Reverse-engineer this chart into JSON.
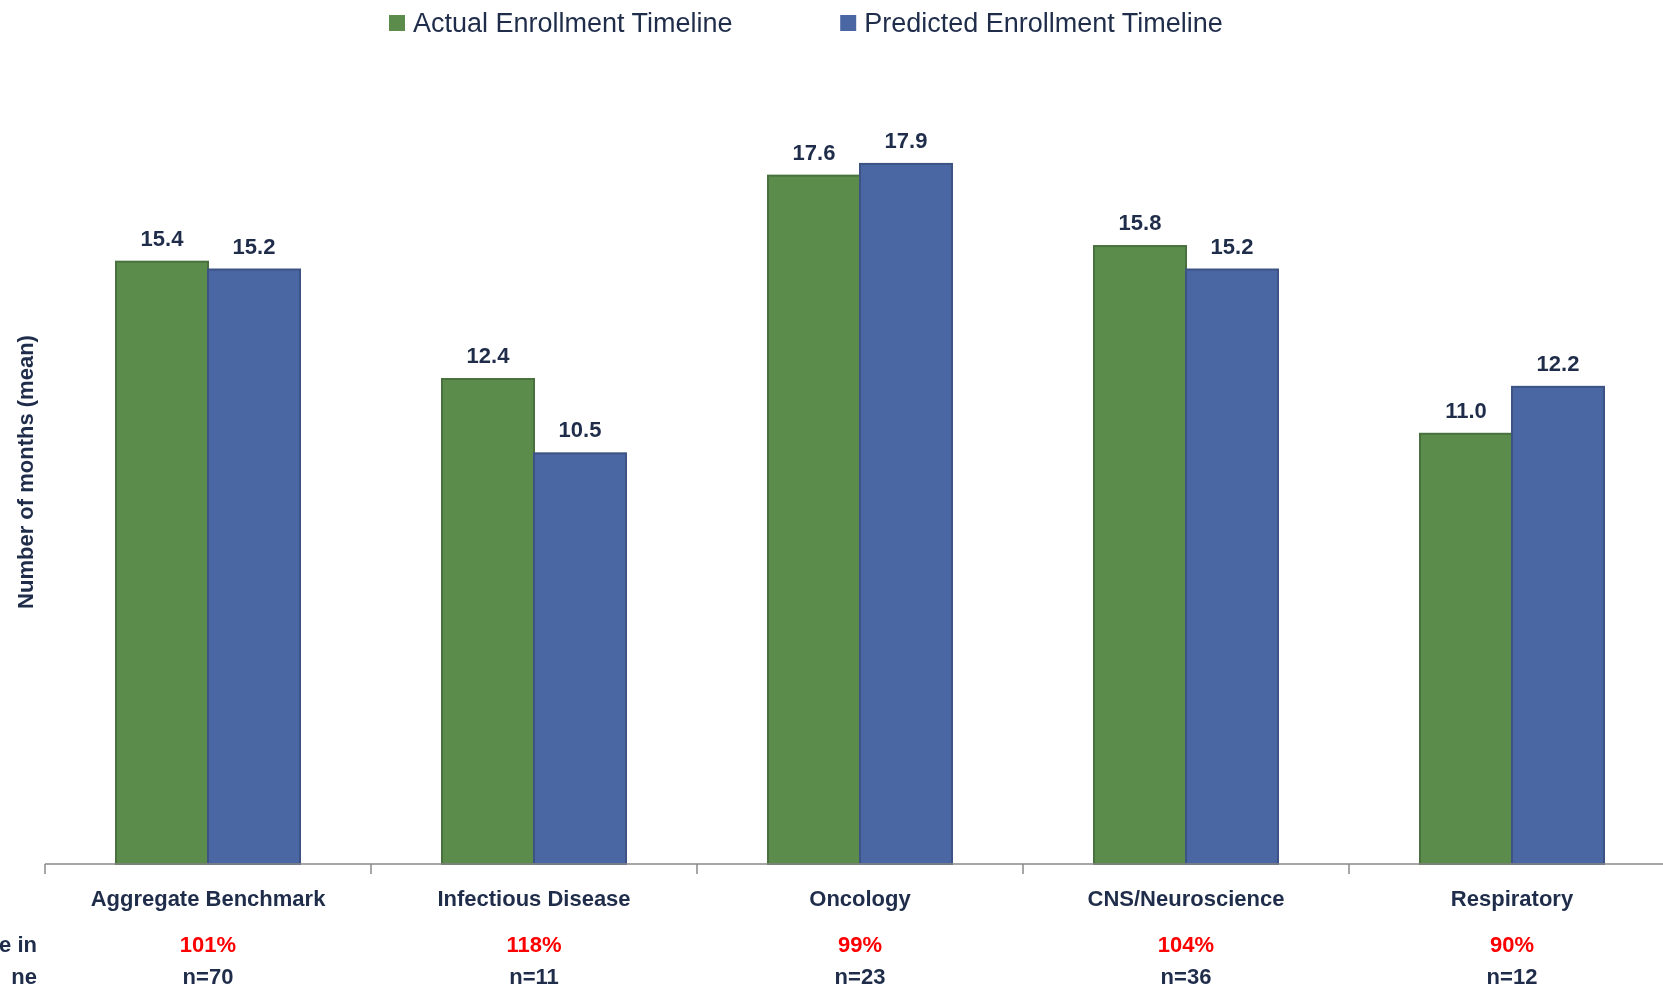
{
  "chart_data": {
    "type": "bar",
    "ylabel": "Number of months (mean)",
    "categories": [
      "Aggregate Benchmark",
      "Infectious Disease",
      "Oncology",
      "CNS/Neuroscience",
      "Respiratory"
    ],
    "series": [
      {
        "name": "Actual Enrollment Timeline",
        "color": "#5b8c4c",
        "values": [
          15.4,
          12.4,
          17.6,
          15.8,
          11.0
        ],
        "value_labels": [
          "15.4",
          "12.4",
          "17.6",
          "15.8",
          "11.0"
        ]
      },
      {
        "name": "Predicted Enrollment Timeline",
        "color": "#4a67a3",
        "values": [
          15.2,
          10.5,
          17.9,
          15.2,
          12.2
        ],
        "value_labels": [
          "15.2",
          "10.5",
          "17.9",
          "15.2",
          "12.2"
        ]
      }
    ],
    "legend": "top",
    "annotations": [
      "101%",
      "n=70",
      "118%",
      "n=11",
      "99%",
      "n=23",
      "104%",
      "n=36",
      "90%",
      "n=12",
      "e in",
      "ne"
    ]
  }
}
